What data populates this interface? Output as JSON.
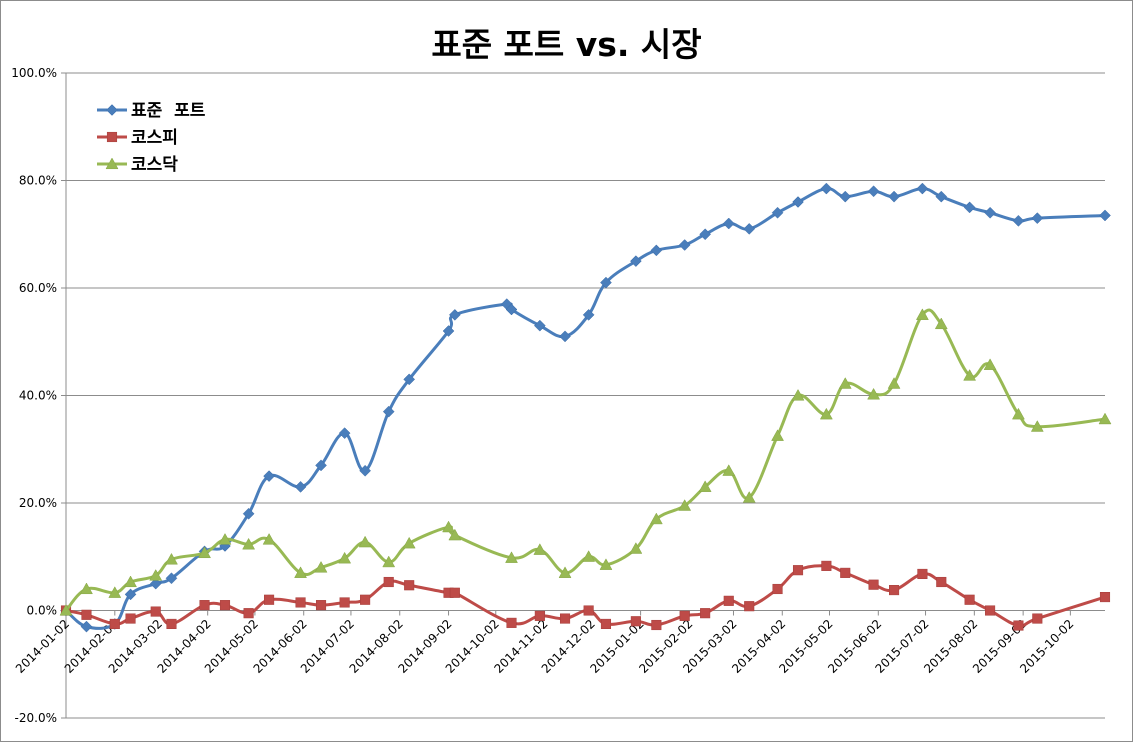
{
  "chart_data": {
    "type": "line",
    "title": "표준 포트 vs. 시장",
    "xlabel": "",
    "ylabel": "",
    "ylim": [
      -20,
      100
    ],
    "y_ticks": [
      "-20.0%",
      "0.0%",
      "20.0%",
      "40.0%",
      "60.0%",
      "80.0%",
      "100.0%"
    ],
    "y_tick_values": [
      -20,
      0,
      20,
      40,
      60,
      80,
      100
    ],
    "x_tick_labels": [
      "2014-01-02",
      "2014-02-02",
      "2014-03-02",
      "2014-04-02",
      "2014-05-02",
      "2014-06-02",
      "2014-07-02",
      "2014-08-02",
      "2014-09-02",
      "2014-10-02",
      "2014-11-02",
      "2014-12-02",
      "2015-01-02",
      "2015-02-02",
      "2015-03-02",
      "2015-04-02",
      "2015-05-02",
      "2015-06-02",
      "2015-07-02",
      "2015-08-02",
      "2015-09-02",
      "2015-10-02"
    ],
    "x_range": [
      "2014-01-02",
      "2015-10-24"
    ],
    "grid": "horizontal",
    "legend": "top-left",
    "series": [
      {
        "name": "표준  포트",
        "color": "#4a7ebb",
        "marker": "diamond",
        "points": [
          [
            "2014-01-02",
            0.0
          ],
          [
            "2014-01-15",
            -3.0
          ],
          [
            "2014-02-02",
            -2.5
          ],
          [
            "2014-02-12",
            3.0
          ],
          [
            "2014-02-28",
            5.0
          ],
          [
            "2014-03-10",
            6.0
          ],
          [
            "2014-03-31",
            11.0
          ],
          [
            "2014-04-13",
            12.0
          ],
          [
            "2014-04-28",
            18.0
          ],
          [
            "2014-05-11",
            25.0
          ],
          [
            "2014-05-31",
            23.0
          ],
          [
            "2014-06-13",
            27.0
          ],
          [
            "2014-06-28",
            33.0
          ],
          [
            "2014-07-11",
            26.0
          ],
          [
            "2014-07-26",
            37.0
          ],
          [
            "2014-08-08",
            43.0
          ],
          [
            "2014-09-02",
            52.0
          ],
          [
            "2014-09-06",
            55.0
          ],
          [
            "2014-10-09",
            57.0
          ],
          [
            "2014-10-12",
            56.0
          ],
          [
            "2014-10-30",
            53.0
          ],
          [
            "2014-11-15",
            51.0
          ],
          [
            "2014-11-30",
            55.0
          ],
          [
            "2014-12-11",
            61.0
          ],
          [
            "2014-12-30",
            65.0
          ],
          [
            "2015-01-12",
            67.0
          ],
          [
            "2015-01-30",
            68.0
          ],
          [
            "2015-02-12",
            70.0
          ],
          [
            "2015-02-27",
            72.0
          ],
          [
            "2015-03-12",
            71.0
          ],
          [
            "2015-03-30",
            74.0
          ],
          [
            "2015-04-12",
            76.0
          ],
          [
            "2015-04-30",
            78.5
          ],
          [
            "2015-05-12",
            77.0
          ],
          [
            "2015-05-30",
            78.0
          ],
          [
            "2015-06-12",
            77.0
          ],
          [
            "2015-06-30",
            78.5
          ],
          [
            "2015-07-12",
            77.0
          ],
          [
            "2015-07-30",
            75.0
          ],
          [
            "2015-08-12",
            74.0
          ],
          [
            "2015-08-30",
            72.5
          ],
          [
            "2015-09-11",
            73.0
          ],
          [
            "2015-10-24",
            73.5
          ]
        ]
      },
      {
        "name": "코스피",
        "color": "#be4b48",
        "marker": "square",
        "points": [
          [
            "2014-01-02",
            0.0
          ],
          [
            "2014-01-15",
            -0.8
          ],
          [
            "2014-02-02",
            -2.5
          ],
          [
            "2014-02-12",
            -1.5
          ],
          [
            "2014-02-28",
            -0.2
          ],
          [
            "2014-03-10",
            -2.5
          ],
          [
            "2014-03-31",
            1.0
          ],
          [
            "2014-04-13",
            1.0
          ],
          [
            "2014-04-28",
            -0.5
          ],
          [
            "2014-05-11",
            2.0
          ],
          [
            "2014-05-31",
            1.5
          ],
          [
            "2014-06-13",
            1.0
          ],
          [
            "2014-06-28",
            1.5
          ],
          [
            "2014-07-11",
            2.0
          ],
          [
            "2014-07-26",
            5.3
          ],
          [
            "2014-08-08",
            4.7
          ],
          [
            "2014-09-02",
            3.3
          ],
          [
            "2014-09-06",
            3.3
          ],
          [
            "2014-10-12",
            -2.3
          ],
          [
            "2014-10-30",
            -1.0
          ],
          [
            "2014-11-15",
            -1.5
          ],
          [
            "2014-11-30",
            0.0
          ],
          [
            "2014-12-11",
            -2.5
          ],
          [
            "2014-12-30",
            -2.0
          ],
          [
            "2015-01-12",
            -2.7
          ],
          [
            "2015-01-30",
            -1.0
          ],
          [
            "2015-02-12",
            -0.5
          ],
          [
            "2015-02-27",
            1.8
          ],
          [
            "2015-03-12",
            0.8
          ],
          [
            "2015-03-30",
            4.0
          ],
          [
            "2015-04-12",
            7.5
          ],
          [
            "2015-04-30",
            8.3
          ],
          [
            "2015-05-12",
            7.0
          ],
          [
            "2015-05-30",
            4.8
          ],
          [
            "2015-06-12",
            3.8
          ],
          [
            "2015-06-30",
            6.8
          ],
          [
            "2015-07-12",
            5.3
          ],
          [
            "2015-07-30",
            2.0
          ],
          [
            "2015-08-12",
            0.0
          ],
          [
            "2015-08-30",
            -2.8
          ],
          [
            "2015-09-11",
            -1.5
          ],
          [
            "2015-10-24",
            2.5
          ]
        ]
      },
      {
        "name": "코스닥",
        "color": "#98b954",
        "marker": "triangle",
        "points": [
          [
            "2014-01-02",
            0.0
          ],
          [
            "2014-01-15",
            4.0
          ],
          [
            "2014-02-02",
            3.3
          ],
          [
            "2014-02-12",
            5.3
          ],
          [
            "2014-02-28",
            6.5
          ],
          [
            "2014-03-10",
            9.5
          ],
          [
            "2014-03-31",
            10.7
          ],
          [
            "2014-04-13",
            13.2
          ],
          [
            "2014-04-28",
            12.3
          ],
          [
            "2014-05-11",
            13.2
          ],
          [
            "2014-05-31",
            7.0
          ],
          [
            "2014-06-13",
            8.0
          ],
          [
            "2014-06-28",
            9.7
          ],
          [
            "2014-07-11",
            12.7
          ],
          [
            "2014-07-26",
            9.0
          ],
          [
            "2014-08-08",
            12.5
          ],
          [
            "2014-09-02",
            15.5
          ],
          [
            "2014-09-06",
            14.0
          ],
          [
            "2014-10-12",
            9.8
          ],
          [
            "2014-10-30",
            11.3
          ],
          [
            "2014-11-15",
            7.0
          ],
          [
            "2014-11-30",
            10.0
          ],
          [
            "2014-12-11",
            8.5
          ],
          [
            "2014-12-30",
            11.5
          ],
          [
            "2015-01-12",
            17.0
          ],
          [
            "2015-01-30",
            19.5
          ],
          [
            "2015-02-12",
            23.0
          ],
          [
            "2015-02-27",
            26.0
          ],
          [
            "2015-03-12",
            21.0
          ],
          [
            "2015-03-30",
            32.5
          ],
          [
            "2015-04-12",
            40.0
          ],
          [
            "2015-04-30",
            36.5
          ],
          [
            "2015-05-12",
            42.2
          ],
          [
            "2015-05-30",
            40.2
          ],
          [
            "2015-06-12",
            42.2
          ],
          [
            "2015-06-30",
            55.0
          ],
          [
            "2015-07-12",
            53.3
          ],
          [
            "2015-07-30",
            43.7
          ],
          [
            "2015-08-12",
            45.7
          ],
          [
            "2015-08-30",
            36.5
          ],
          [
            "2015-09-11",
            34.2
          ],
          [
            "2015-10-24",
            35.6
          ]
        ]
      }
    ]
  }
}
